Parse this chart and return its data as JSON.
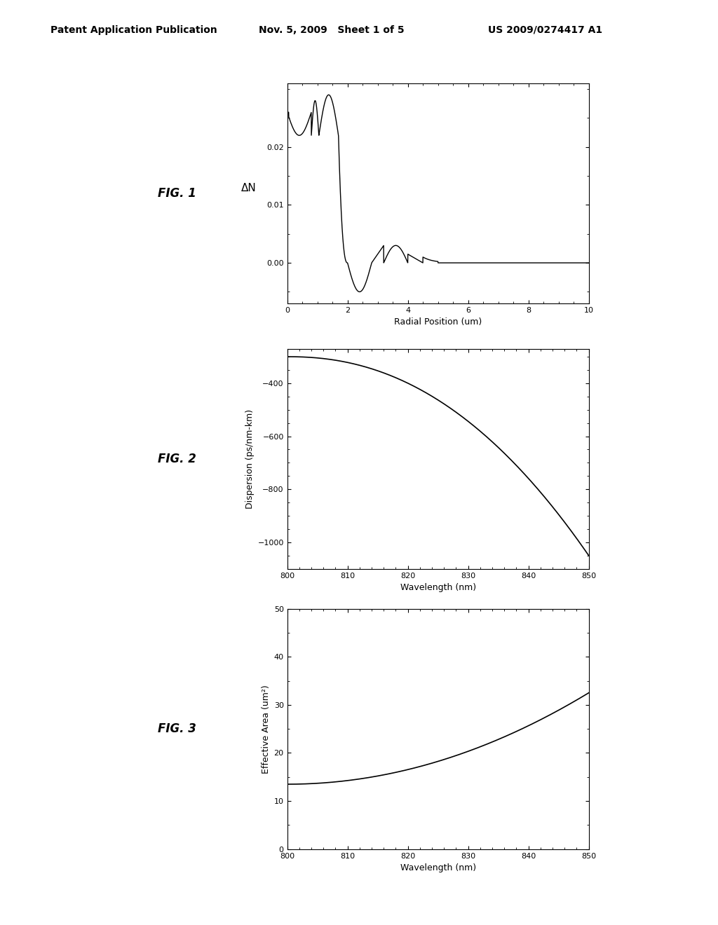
{
  "header_left": "Patent Application Publication",
  "header_mid": "Nov. 5, 2009   Sheet 1 of 5",
  "header_right": "US 2009/0274417 A1",
  "fig1_label": "FIG. 1",
  "fig2_label": "FIG. 2",
  "fig3_label": "FIG. 3",
  "fig1_xlabel": "Radial Position (um)",
  "fig1_ylabel": "ΔN",
  "fig1_xlim": [
    0,
    10
  ],
  "fig1_ylim": [
    -0.007,
    0.031
  ],
  "fig1_yticks": [
    0.0,
    0.01,
    0.02
  ],
  "fig1_xticks": [
    0,
    2,
    4,
    6,
    8,
    10
  ],
  "fig2_xlabel": "Wavelength (nm)",
  "fig2_ylabel": "Dispersion (ps/nm-km)",
  "fig2_xlim": [
    800,
    850
  ],
  "fig2_ylim": [
    -1100,
    -270
  ],
  "fig2_yticks": [
    -1000,
    -800,
    -600,
    -400
  ],
  "fig2_xticks": [
    800,
    810,
    820,
    830,
    840,
    850
  ],
  "fig3_xlabel": "Wavelength (nm)",
  "fig3_ylabel": "Effective Area (um²)",
  "fig3_xlim": [
    800,
    850
  ],
  "fig3_ylim": [
    0,
    50
  ],
  "fig3_yticks": [
    0,
    10,
    20,
    30,
    40,
    50
  ],
  "fig3_xticks": [
    800,
    810,
    820,
    830,
    840,
    850
  ],
  "line_color": "#000000",
  "background_color": "#ffffff",
  "header_fontsize": 10,
  "figlabel_fontsize": 12,
  "axis_label_fontsize": 9,
  "tick_fontsize": 8
}
